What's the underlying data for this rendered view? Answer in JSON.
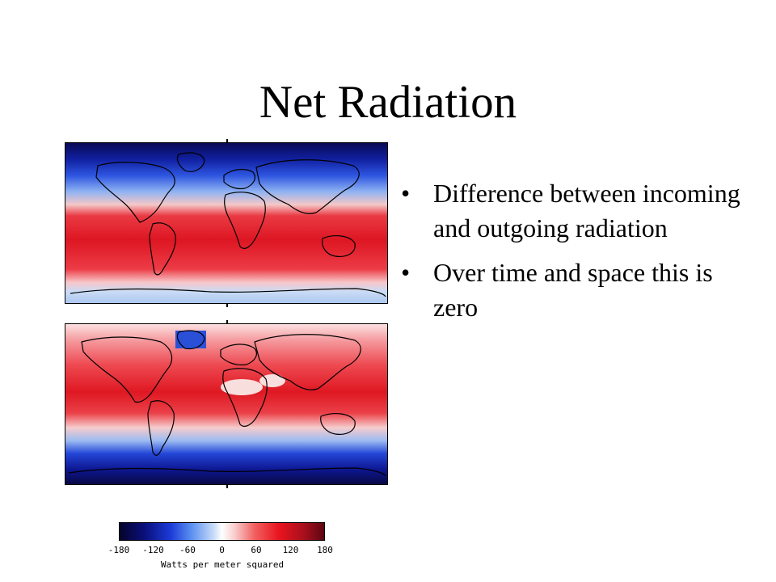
{
  "slide": {
    "title": "Net Radiation",
    "bullets": [
      {
        "marker": "•",
        "text": "Difference between incoming and outgoing radiation"
      },
      {
        "marker": "•",
        "text": "Over time and space this is zero"
      }
    ]
  },
  "colorbar": {
    "ticks": [
      "-180",
      "-120",
      "-60",
      "0",
      "60",
      "120",
      "180"
    ],
    "unit_label": "Watts per meter squared",
    "colors": [
      "#05042a",
      "#0a0f7a",
      "#1c3bd8",
      "#5a8ff0",
      "#c7dbf8",
      "#ffffff",
      "#f8cfcf",
      "#f26060",
      "#e8141e",
      "#a90f1d",
      "#5c0612"
    ]
  }
}
